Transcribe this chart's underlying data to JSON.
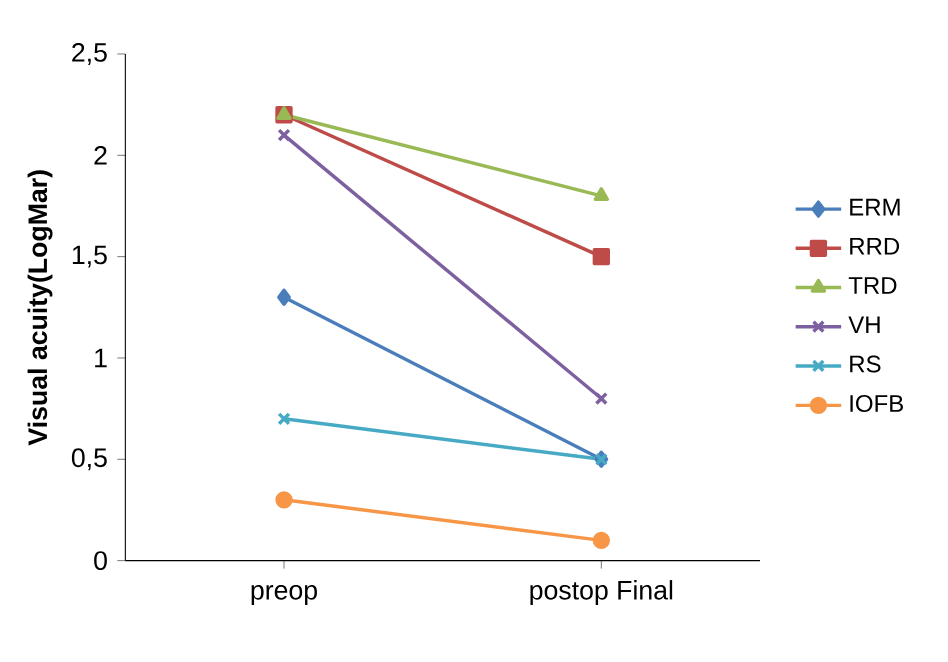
{
  "chart_data": {
    "type": "line",
    "ylabel": "Visual acuity(LogMar)",
    "categories": [
      "preop",
      "postop Final"
    ],
    "series": [
      {
        "name": "ERM",
        "color": "#4a7ebb",
        "marker": "diamond",
        "values": [
          1.3,
          0.5
        ]
      },
      {
        "name": "RRD",
        "color": "#be4b48",
        "marker": "square",
        "values": [
          2.2,
          1.5
        ]
      },
      {
        "name": "TRD",
        "color": "#98b954",
        "marker": "triangle",
        "values": [
          2.2,
          1.8
        ]
      },
      {
        "name": "VH",
        "color": "#7d60a0",
        "marker": "cross",
        "values": [
          2.1,
          0.8
        ]
      },
      {
        "name": "RS",
        "color": "#46aac5",
        "marker": "cross",
        "values": [
          0.7,
          0.5
        ]
      },
      {
        "name": "IOFB",
        "color": "#f79646",
        "marker": "circle",
        "values": [
          0.3,
          0.1
        ]
      }
    ],
    "ylim": [
      0,
      2.5
    ],
    "yticks": [
      0,
      {
        "value": 0.5,
        "label": "0,5"
      },
      1,
      {
        "value": 1.5,
        "label": "1,5"
      },
      2,
      {
        "value": 2.5,
        "label": "2,5"
      }
    ],
    "legend": "right",
    "grid": false,
    "line_style": "solid"
  }
}
